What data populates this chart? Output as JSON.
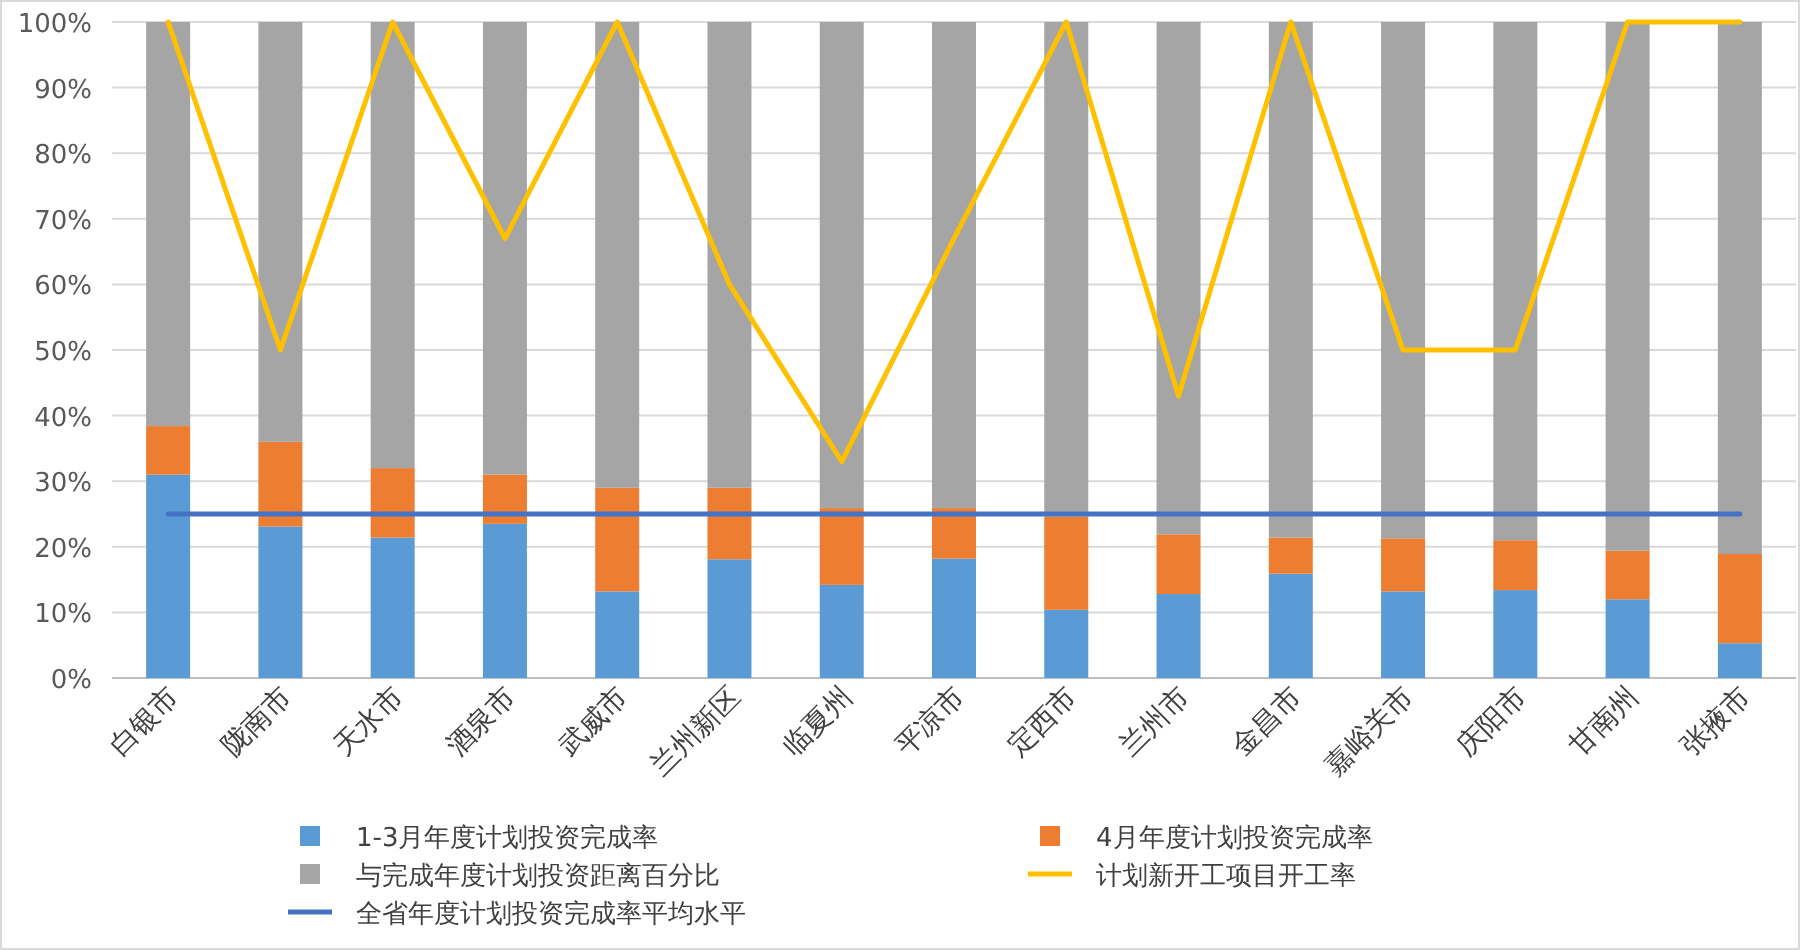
{
  "chart_data": {
    "type": "bar",
    "stacked": true,
    "grid": "y",
    "legend": "bottom",
    "categories": [
      "白银市",
      "陇南市",
      "天水市",
      "酒泉市",
      "武威市",
      "兰州新区",
      "临夏州",
      "平凉市",
      "定西市",
      "兰州市",
      "金昌市",
      "嘉峪关市",
      "庆阳市",
      "甘南州",
      "张掖市"
    ],
    "ylim": [
      0,
      100
    ],
    "yticks": [
      {
        "value": 0,
        "label": "0%"
      },
      {
        "value": 10,
        "label": "10%"
      },
      {
        "value": 20,
        "label": "20%"
      },
      {
        "value": 30,
        "label": "30%"
      },
      {
        "value": 40,
        "label": "40%"
      },
      {
        "value": 50,
        "label": "50%"
      },
      {
        "value": 60,
        "label": "60%"
      },
      {
        "value": 70,
        "label": "70%"
      },
      {
        "value": 80,
        "label": "80%"
      },
      {
        "value": 90,
        "label": "90%"
      },
      {
        "value": 100,
        "label": "100%"
      }
    ],
    "series": [
      {
        "name": "1-3月年度计划投资完成率",
        "color": "#5b9bd5",
        "values": [
          31.0,
          23.1,
          21.4,
          23.5,
          13.2,
          18.1,
          14.2,
          18.2,
          10.4,
          12.8,
          15.9,
          13.2,
          13.4,
          12.0,
          5.3
        ]
      },
      {
        "name": "4月年度计划投资完成率",
        "color": "#ed7d31",
        "values": [
          7.4,
          12.9,
          10.6,
          7.5,
          15.8,
          10.9,
          11.7,
          7.7,
          14.2,
          9.1,
          5.5,
          8.1,
          7.6,
          7.4,
          13.6
        ]
      },
      {
        "name": "与完成年度计划投资距离百分比",
        "color": "#a5a5a5",
        "values": [
          61.6,
          64.0,
          68.0,
          69.0,
          71.0,
          71.0,
          74.1,
          74.1,
          75.4,
          78.1,
          78.6,
          78.7,
          79.0,
          80.6,
          81.1
        ]
      },
      {
        "name": "计划新开工项目开工率",
        "type": "line",
        "color": "#ffc000",
        "values": [
          100,
          50,
          100,
          67,
          100,
          60,
          33,
          67,
          100,
          43,
          100,
          50,
          50,
          100,
          100
        ]
      },
      {
        "name": "全省年度计划投资完成率平均水平",
        "type": "line",
        "color": "#4472c4",
        "values": [
          25,
          25,
          25,
          25,
          25,
          25,
          25,
          25,
          25,
          25,
          25,
          25,
          25,
          25,
          25
        ]
      }
    ]
  }
}
